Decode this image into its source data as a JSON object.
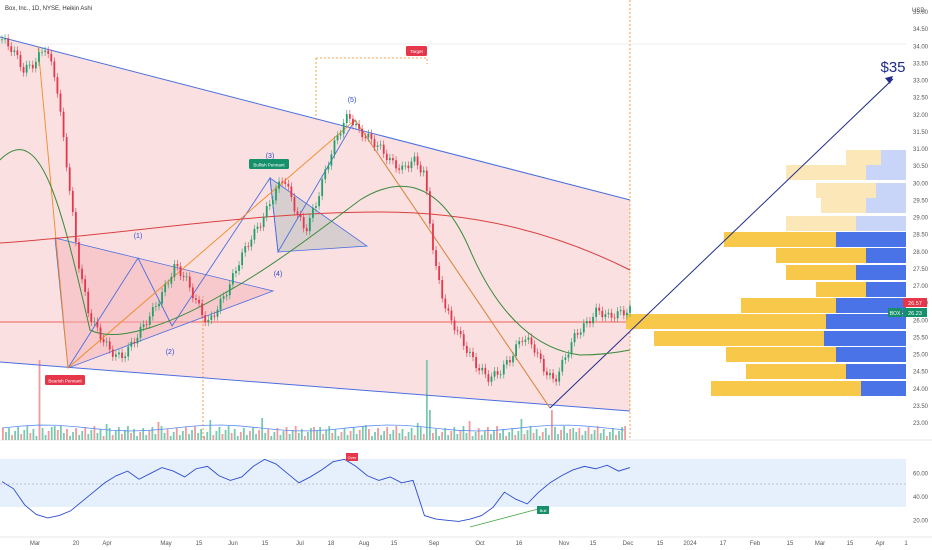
{
  "chart_data": {
    "type": "candlestick",
    "title": "Box, Inc., 1D, NYSE, Heikin Ashi",
    "currency": "USD",
    "ticker": "BOX",
    "y_ticks": [
      23.0,
      23.5,
      24.0,
      24.5,
      25.0,
      25.5,
      26.0,
      26.5,
      27.0,
      27.5,
      28.0,
      28.5,
      29.0,
      29.5,
      30.0,
      30.5,
      31.0,
      31.5,
      32.0,
      32.5,
      33.0,
      33.5,
      34.0,
      34.5,
      35.0
    ],
    "y_ticks_label": [
      "23.00",
      "23.50",
      "24.00",
      "24.50",
      "25.00",
      "25.50",
      "26.00",
      "26.50",
      "27.00",
      "27.50",
      "28.00",
      "28.50",
      "29.00",
      "29.50",
      "30.00",
      "30.50",
      "31.00",
      "31.50",
      "32.00",
      "32.50",
      "33.00",
      "33.50",
      "34.00",
      "34.50",
      "35.00"
    ],
    "ylim": [
      22.6,
      35.4
    ],
    "x_ticks": [
      "Mar",
      "20",
      "Apr",
      "May",
      "15",
      "Jun",
      "15",
      "Jul",
      "18",
      "Aug",
      "15",
      "Sep",
      "Oct",
      "16",
      "Nov",
      "15",
      "Dec",
      "15",
      "2024",
      "17",
      "Feb",
      "15",
      "Mar",
      "15",
      "Apr",
      "1"
    ],
    "price_label_high": "26.57",
    "price_label_last": "26.23",
    "price_path": [
      34.2,
      33.9,
      33.3,
      33.5,
      34.0,
      33.0,
      30.5,
      27.8,
      26.2,
      25.6,
      25.1,
      24.9,
      25.3,
      25.8,
      26.3,
      26.9,
      27.6,
      27.2,
      26.5,
      25.9,
      26.4,
      27.0,
      27.8,
      28.4,
      28.9,
      29.6,
      30.2,
      29.3,
      28.6,
      29.4,
      30.5,
      31.4,
      32.0,
      31.5,
      31.3,
      31.0,
      30.6,
      30.4,
      30.7,
      30.3,
      27.6,
      26.3,
      25.7,
      25.1,
      24.6,
      24.3,
      24.5,
      24.9,
      25.5,
      25.3,
      24.6,
      24.2,
      24.9,
      25.6,
      25.9,
      26.3,
      26.1,
      26.2,
      26.3
    ],
    "annotations": [
      {
        "label": "(1)"
      },
      {
        "label": "(2)"
      },
      {
        "label": "(3)"
      },
      {
        "label": "(4)"
      },
      {
        "label": "(5)"
      },
      {
        "label": "Bullish Pennant"
      },
      {
        "label": "Bearish Pennant"
      },
      {
        "label": "Target"
      },
      {
        "label": "$35"
      }
    ],
    "rsi": {
      "ticks": [
        "60.00",
        "40.00",
        "20.00"
      ],
      "labels": [
        "Over",
        "Bull"
      ],
      "values": [
        53,
        47,
        33,
        25,
        22,
        24,
        28,
        36,
        44,
        52,
        58,
        62,
        55,
        60,
        65,
        62,
        57,
        64,
        66,
        58,
        54,
        57,
        66,
        72,
        68,
        60,
        52,
        57,
        63,
        70,
        72,
        66,
        58,
        54,
        57,
        52,
        54,
        24,
        21,
        20,
        19,
        21,
        24,
        31,
        44,
        38,
        34,
        44,
        52,
        58,
        63,
        66,
        64,
        67,
        62,
        65
      ]
    }
  }
}
